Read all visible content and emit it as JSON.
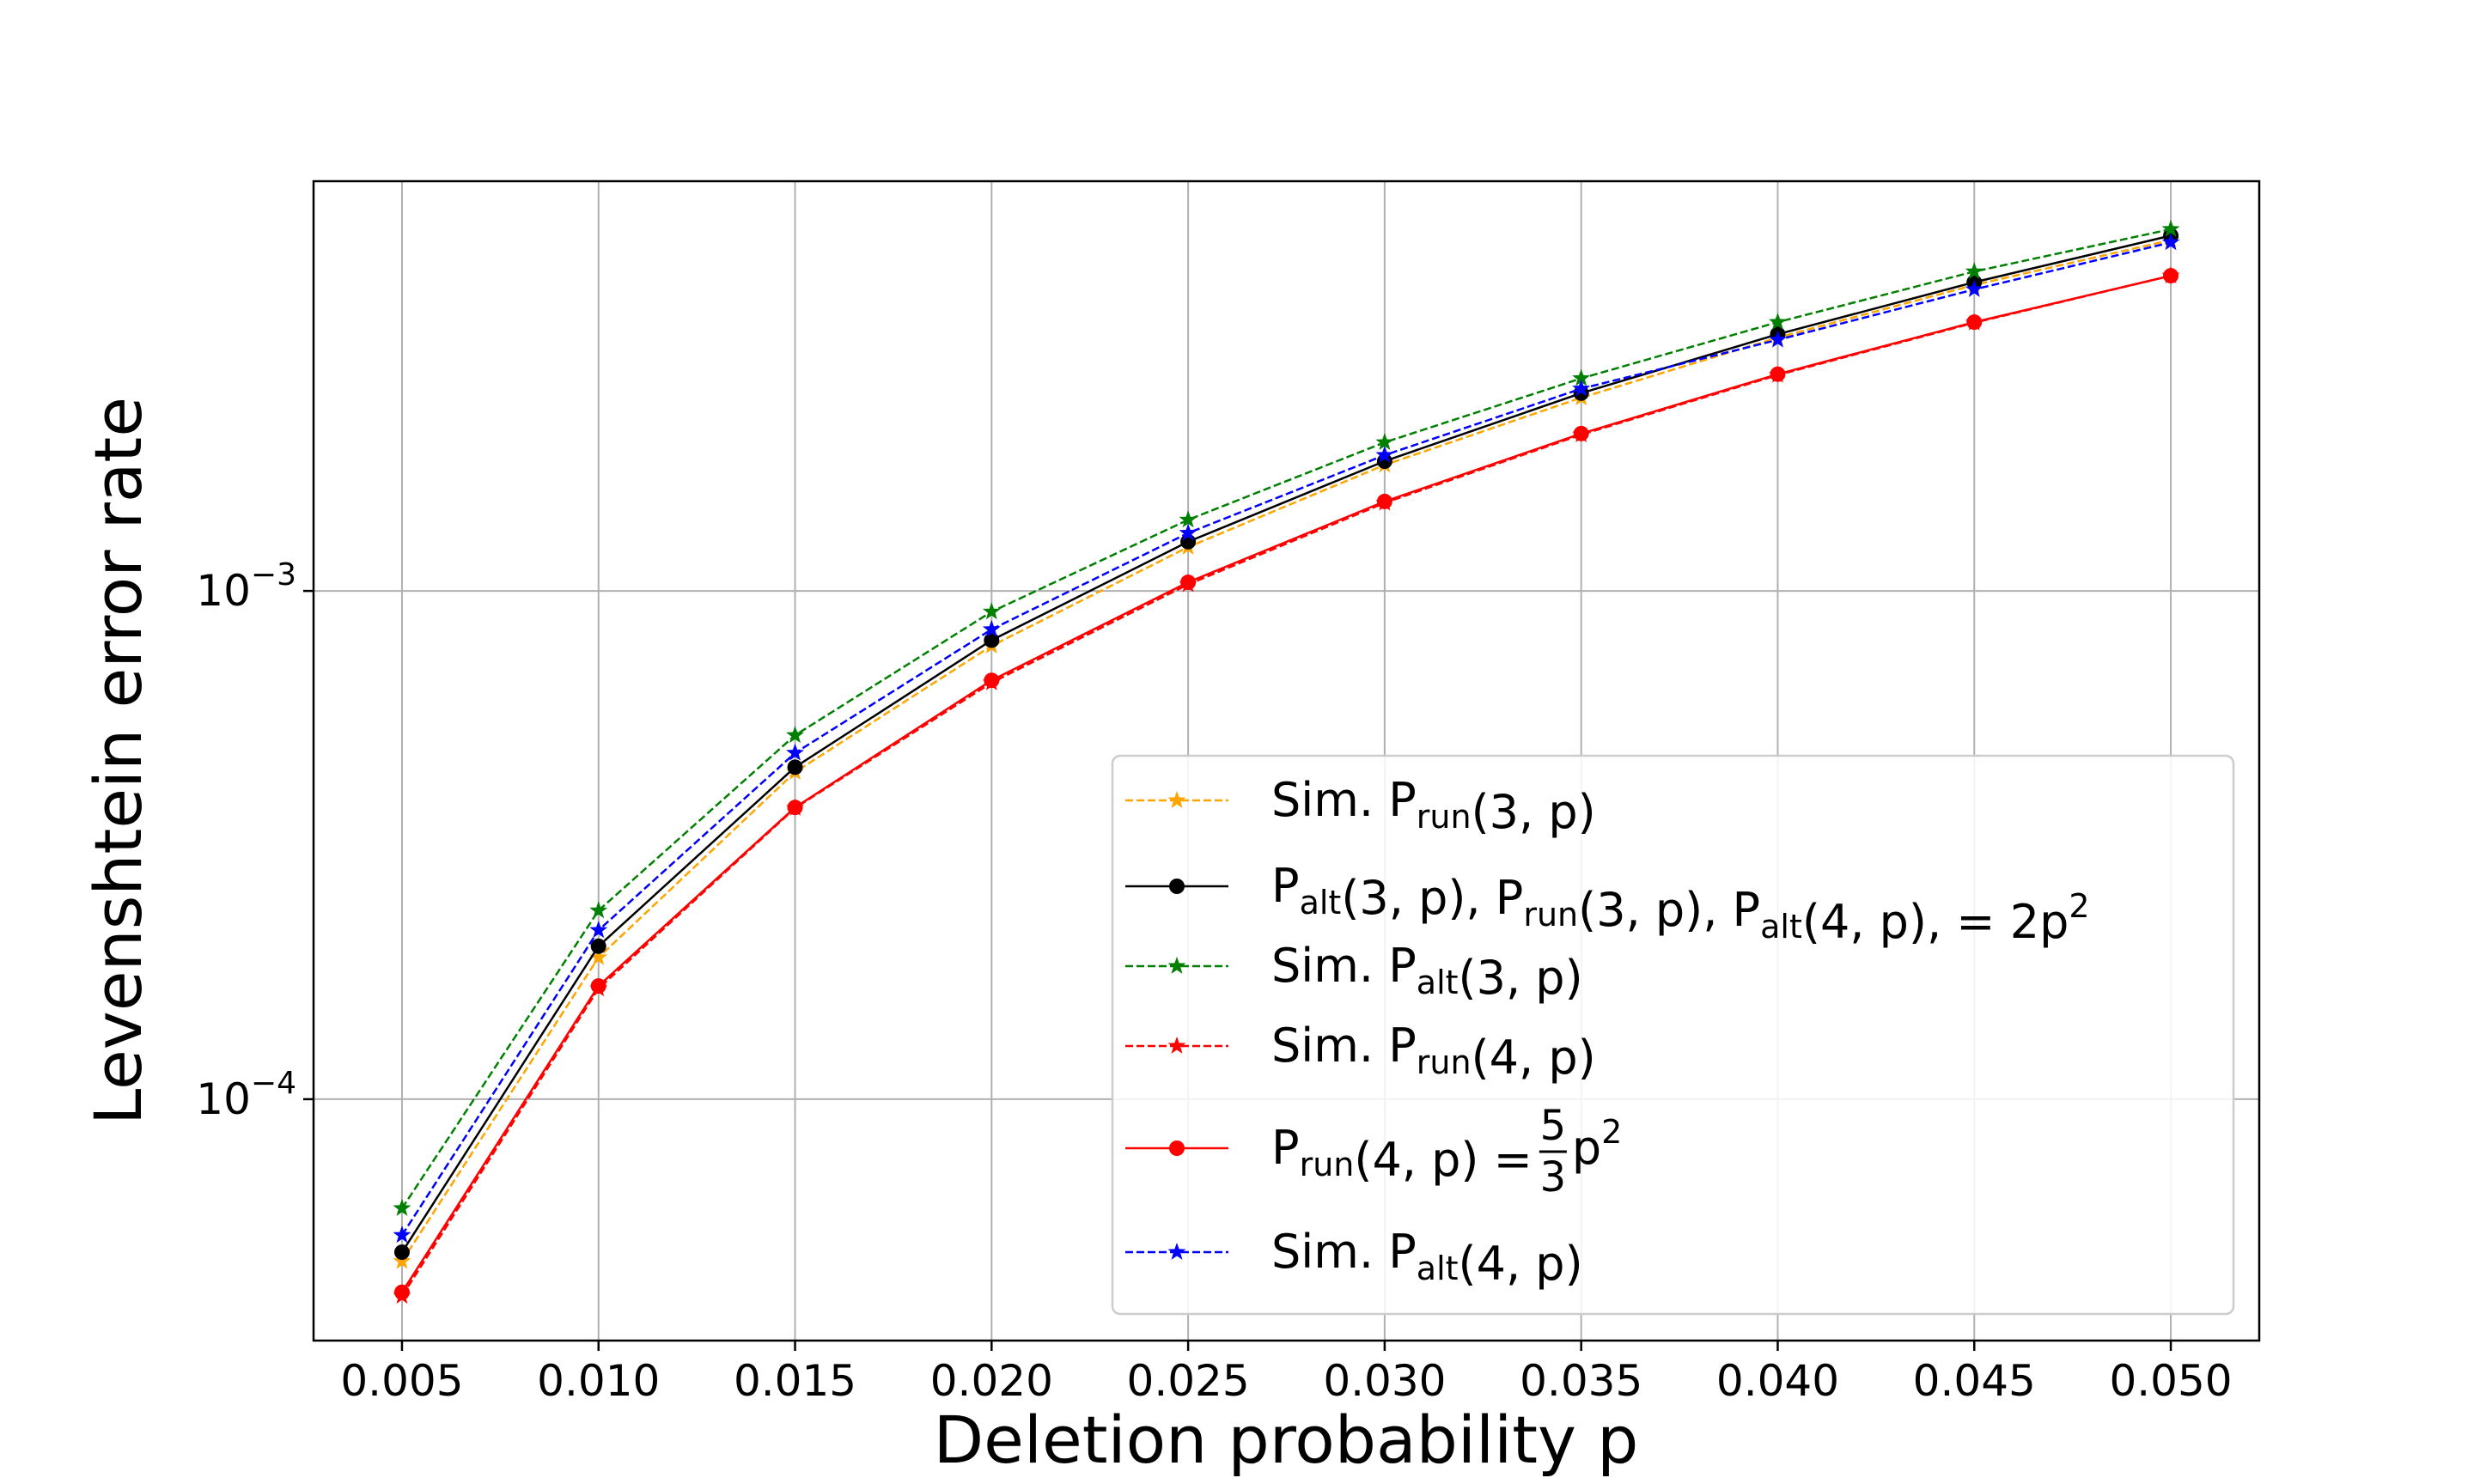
{
  "chart_data": {
    "type": "line",
    "title": "",
    "xlabel": "Deletion probability p",
    "ylabel": "Levenshtein error rate",
    "x_scale": "linear",
    "y_scale": "log",
    "xlim": [
      0.00275,
      0.05225
    ],
    "ylim": [
      3.35e-05,
      0.0064
    ],
    "grid": true,
    "legend_position": "lower-right",
    "x": [
      0.005,
      0.01,
      0.015,
      0.02,
      0.025,
      0.03,
      0.035,
      0.04,
      0.045,
      0.05
    ],
    "x_tick_labels": [
      "0.005",
      "0.010",
      "0.015",
      "0.020",
      "0.025",
      "0.030",
      "0.035",
      "0.040",
      "0.045",
      "0.050"
    ],
    "y_ticks": [
      {
        "value": 0.001,
        "base": "10",
        "exponent": "−3"
      },
      {
        "value": 0.0001,
        "base": "10",
        "exponent": "−4"
      }
    ],
    "series": [
      {
        "legend": {
          "main": "Sim. P",
          "sub": "run",
          "args": "(3, p)"
        },
        "color": "#ffa500",
        "dashed": true,
        "marker": "star",
        "values": [
          4.8e-05,
          0.00019,
          0.00044,
          0.00078,
          0.00122,
          0.00177,
          0.0024,
          0.00315,
          0.004,
          0.0049
        ]
      },
      {
        "legend": {
          "main": "P",
          "sub": "alt",
          "args": "(3, p), P",
          "sub2": "run",
          "args2": "(3, p), P",
          "sub3": "alt",
          "args3": "(4, p),  = 2p",
          "sup": "2"
        },
        "color": "#000000",
        "dashed": false,
        "marker": "circle",
        "values": [
          5e-05,
          0.0002,
          0.00045,
          0.0008,
          0.00125,
          0.0018,
          0.00245,
          0.0032,
          0.00405,
          0.005
        ]
      },
      {
        "legend": {
          "main": "Sim. P",
          "sub": "alt",
          "args": "(3, p)"
        },
        "color": "#008000",
        "dashed": true,
        "marker": "star",
        "values": [
          6.1e-05,
          0.000235,
          0.00052,
          0.00091,
          0.00138,
          0.00196,
          0.00262,
          0.00338,
          0.00425,
          0.00515
        ]
      },
      {
        "legend": {
          "main": "Sim. P",
          "sub": "run",
          "args": "(4, p)"
        },
        "color": "#ff0000",
        "dashed": true,
        "marker": "star",
        "values": [
          4.1e-05,
          0.000165,
          0.000374,
          0.00066,
          0.00103,
          0.00149,
          0.00203,
          0.00266,
          0.00337,
          0.00417
        ]
      },
      {
        "legend": {
          "main": "P",
          "sub": "run",
          "args": "(4, p)  =",
          "frac_num": "5",
          "frac_den": "3",
          "tail": "p",
          "sup": "2"
        },
        "color": "#ff0000",
        "dashed": false,
        "marker": "circle",
        "values": [
          4.17e-05,
          0.000167,
          0.000375,
          0.000667,
          0.00104,
          0.0015,
          0.00204,
          0.00267,
          0.00338,
          0.00417
        ]
      },
      {
        "legend": {
          "main": "Sim. P",
          "sub": "alt",
          "args": "(4, p)"
        },
        "color": "#0000ff",
        "dashed": true,
        "marker": "star",
        "values": [
          5.4e-05,
          0.000215,
          0.00048,
          0.00084,
          0.0013,
          0.00185,
          0.0025,
          0.00312,
          0.00392,
          0.00485
        ]
      }
    ]
  }
}
